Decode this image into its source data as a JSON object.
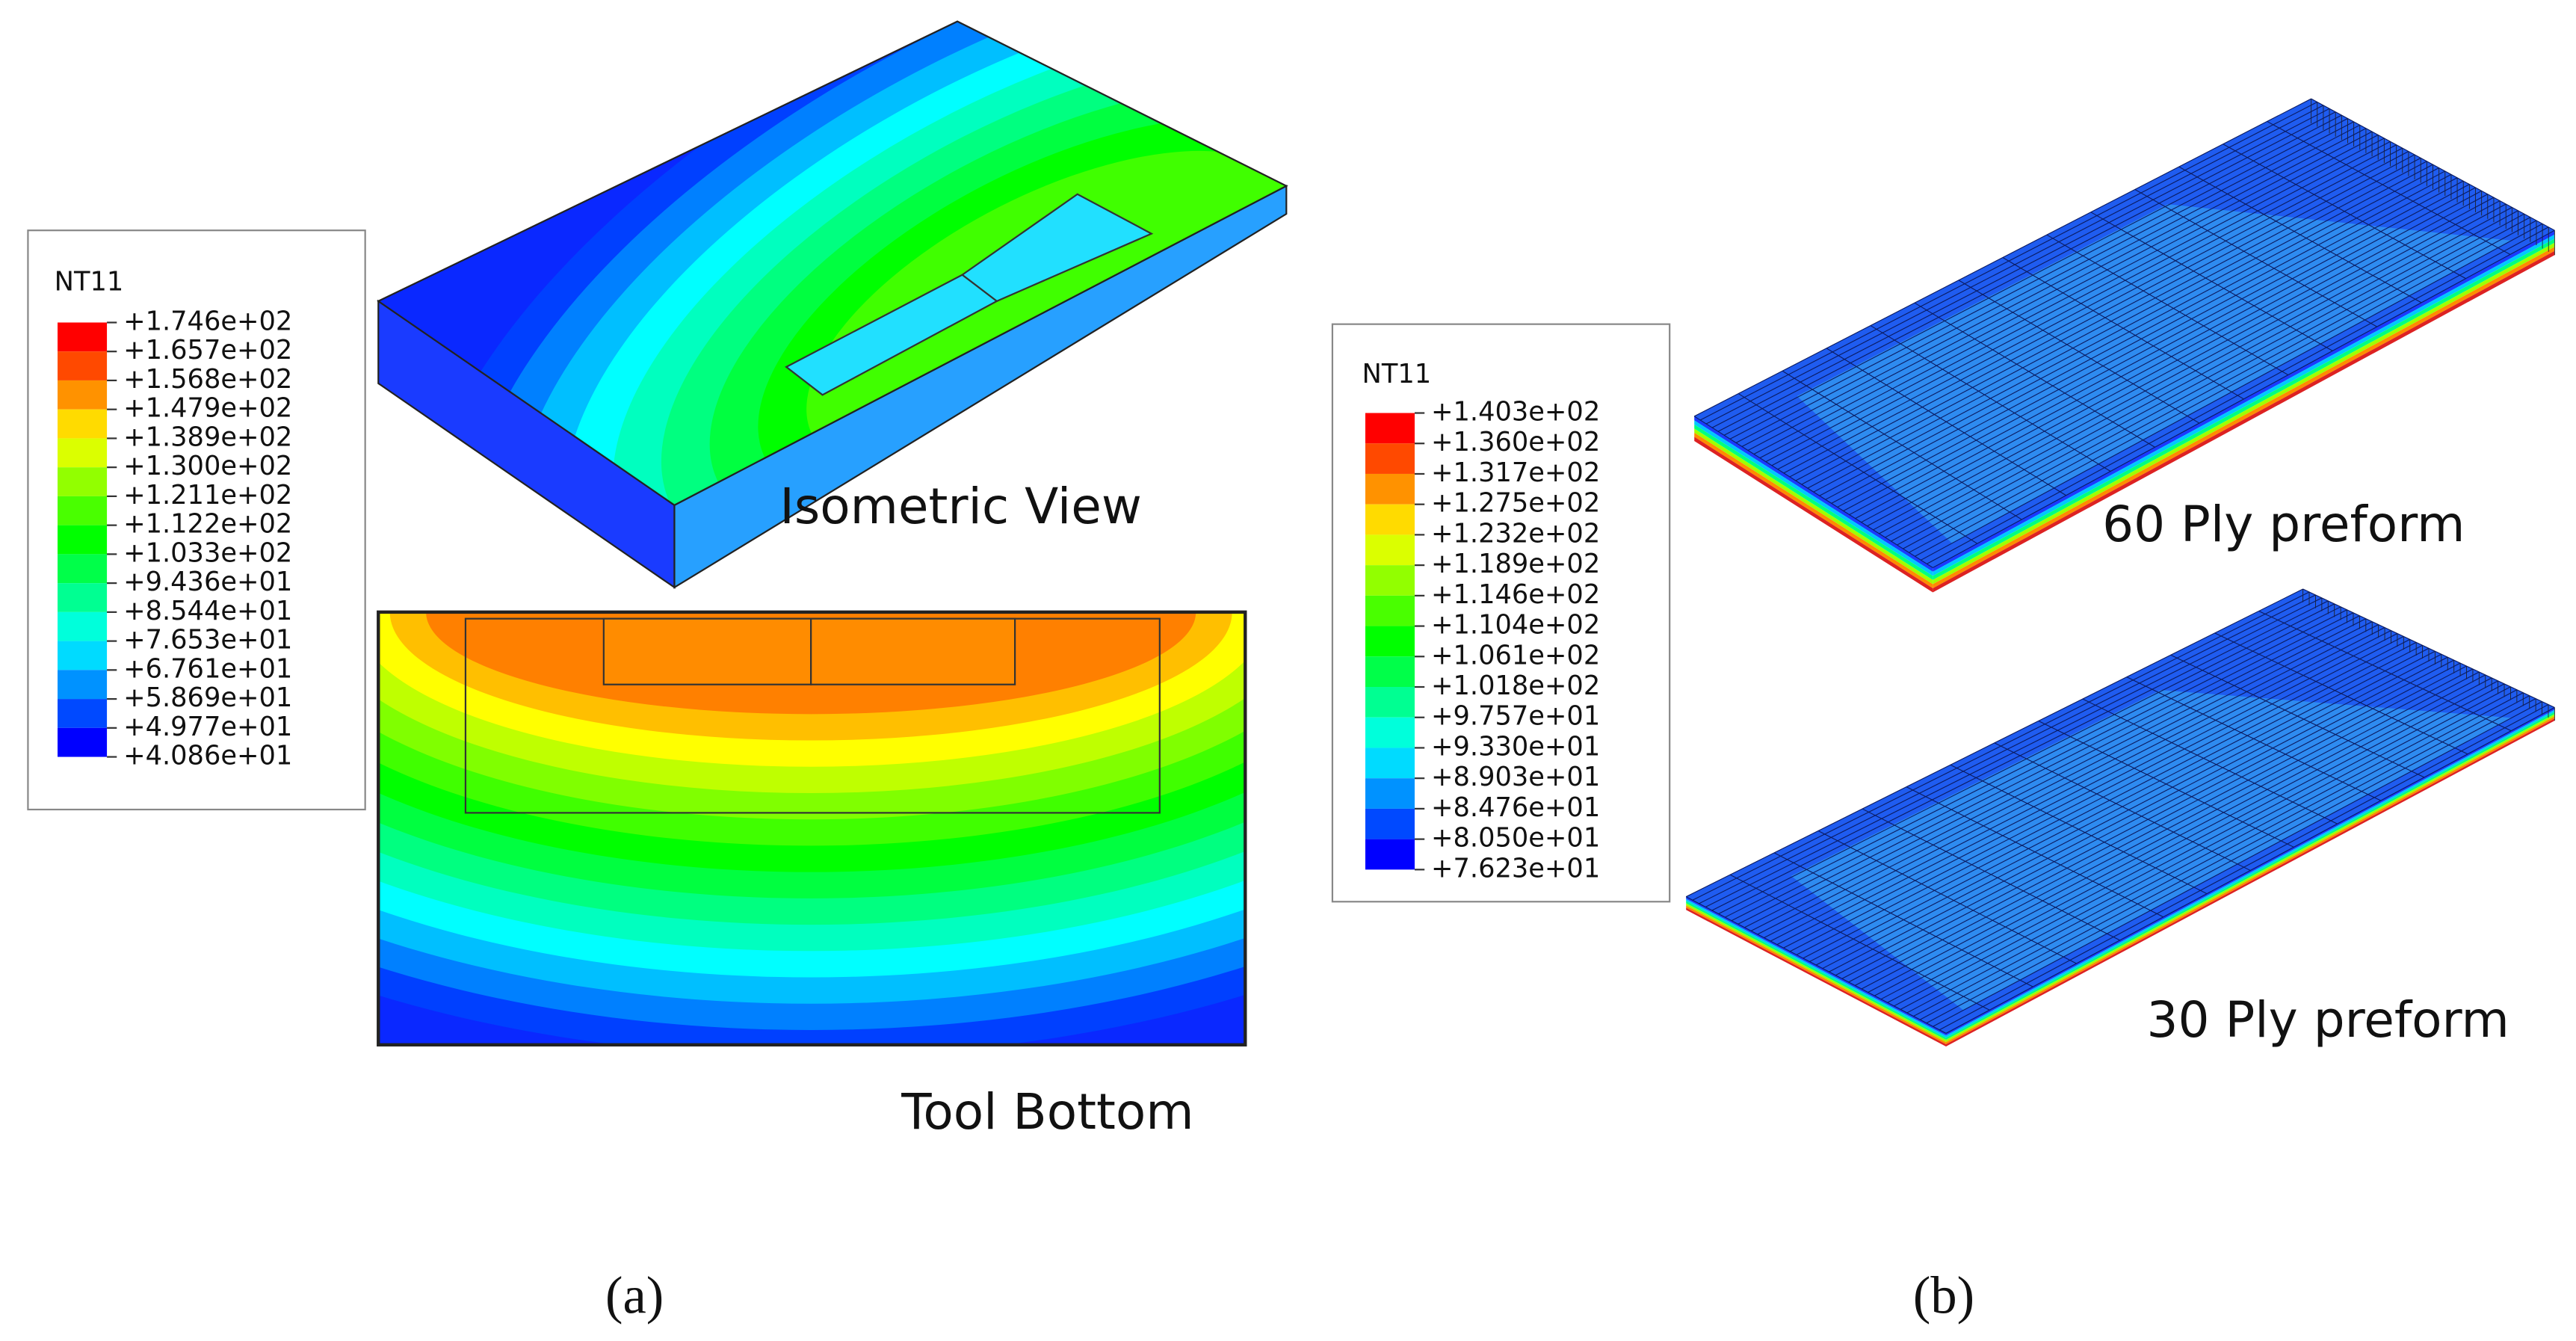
{
  "panel_a": {
    "legend": {
      "title": "NT11",
      "labels": [
        "+1.746e+02",
        "+1.657e+02",
        "+1.568e+02",
        "+1.479e+02",
        "+1.389e+02",
        "+1.300e+02",
        "+1.211e+02",
        "+1.122e+02",
        "+1.033e+02",
        "+9.436e+01",
        "+8.544e+01",
        "+7.653e+01",
        "+6.761e+01",
        "+5.869e+01",
        "+4.977e+01",
        "+4.086e+01"
      ]
    },
    "views": [
      "Isometric View",
      "Tool Bottom"
    ],
    "caption": "(a)"
  },
  "panel_b": {
    "legend": {
      "title": "NT11",
      "labels": [
        "+1.403e+02",
        "+1.360e+02",
        "+1.317e+02",
        "+1.275e+02",
        "+1.232e+02",
        "+1.189e+02",
        "+1.146e+02",
        "+1.104e+02",
        "+1.061e+02",
        "+1.018e+02",
        "+9.757e+01",
        "+9.330e+01",
        "+8.903e+01",
        "+8.476e+01",
        "+8.050e+01",
        "+7.623e+01"
      ]
    },
    "views": [
      "60 Ply preform",
      "30 Ply preform"
    ],
    "caption": "(b)"
  }
}
